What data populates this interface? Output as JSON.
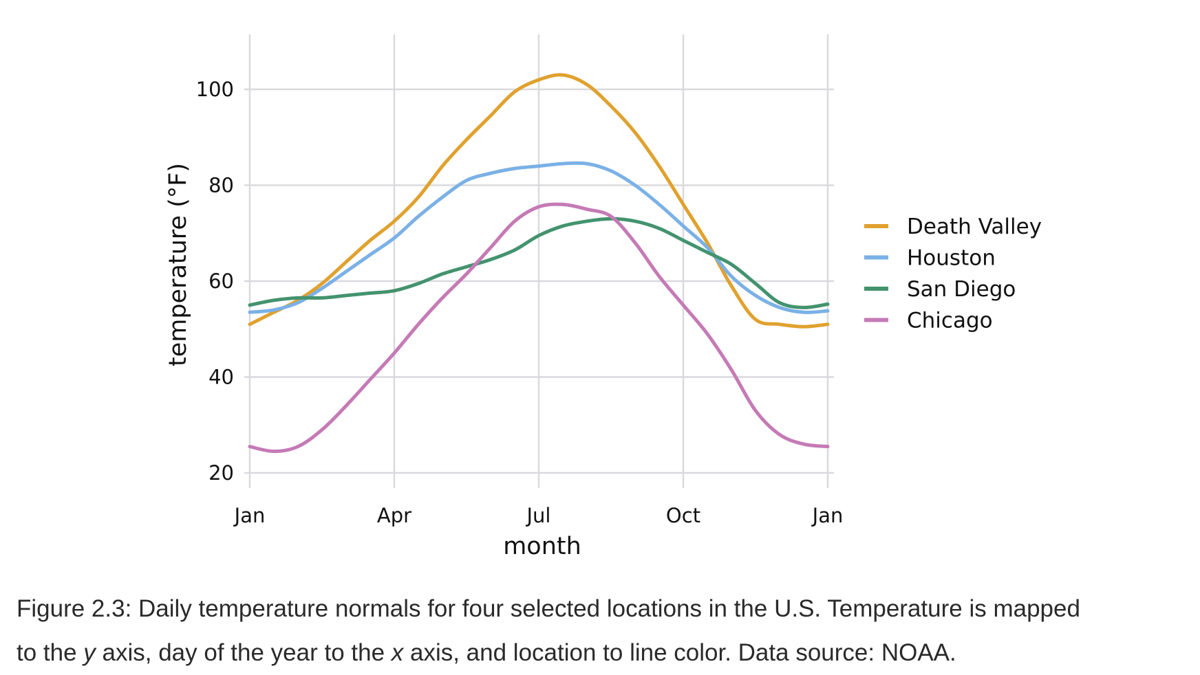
{
  "chart_data": {
    "type": "line",
    "xlabel": "month",
    "ylabel": "temperature (°F)",
    "x_axis": {
      "unit": "month",
      "ticks": [
        {
          "label": "Jan",
          "value": 1
        },
        {
          "label": "Apr",
          "value": 4
        },
        {
          "label": "Jul",
          "value": 7
        },
        {
          "label": "Oct",
          "value": 10
        },
        {
          "label": "Jan",
          "value": 13
        }
      ],
      "range": [
        1,
        13
      ]
    },
    "y_axis": {
      "ticks": [
        20,
        40,
        60,
        80,
        100
      ],
      "range": [
        15,
        111
      ]
    },
    "grid": true,
    "legend_placement": "right",
    "x": [
      1.0,
      1.5,
      2.0,
      2.5,
      3.0,
      3.5,
      4.0,
      4.5,
      5.0,
      5.5,
      6.0,
      6.5,
      7.0,
      7.5,
      8.0,
      8.5,
      9.0,
      9.5,
      10.0,
      10.5,
      11.0,
      11.5,
      12.0,
      12.5,
      13.0
    ],
    "series": [
      {
        "name": "Death Valley",
        "color": "#E0A12E",
        "values": [
          51,
          53.5,
          56,
          59.5,
          64,
          68.5,
          72.5,
          77.5,
          84,
          89.5,
          94.5,
          99.5,
          102,
          103,
          101,
          96.5,
          91,
          84,
          76,
          68,
          59,
          52,
          51,
          50.5,
          51
        ]
      },
      {
        "name": "Houston",
        "color": "#7AB1E6",
        "values": [
          53.5,
          54,
          55.5,
          58.5,
          62,
          65.5,
          69,
          73.5,
          77.5,
          81,
          82.5,
          83.5,
          84,
          84.5,
          84.5,
          83,
          80,
          76,
          71.5,
          67,
          61,
          57,
          54.5,
          53.5,
          53.8
        ]
      },
      {
        "name": "San Diego",
        "color": "#43936E",
        "values": [
          55,
          56,
          56.5,
          56.5,
          57,
          57.5,
          58,
          59.5,
          61.5,
          63,
          64.5,
          66.5,
          69.5,
          71.5,
          72.5,
          73,
          72.5,
          71,
          68.5,
          66,
          63.5,
          59.5,
          55.5,
          54.5,
          55.2
        ]
      },
      {
        "name": "Chicago",
        "color": "#C57AB6",
        "values": [
          25.5,
          24.5,
          25.5,
          29,
          34,
          39.5,
          45,
          51,
          56.5,
          61.5,
          67,
          72.5,
          75.5,
          76,
          75,
          73.5,
          68,
          61,
          55,
          49,
          41.5,
          33,
          28,
          26,
          25.5
        ]
      }
    ]
  },
  "caption": {
    "line1": "Figure 2.3: Daily temperature normals for four selected locations in the U.S. Temperature is mapped",
    "line2_a": "to the ",
    "line2_y": "y",
    "line2_b": " axis, day of the year to the ",
    "line2_x": "x",
    "line2_c": " axis, and location to line color. Data source: NOAA."
  },
  "colors": {
    "grid": "#DADADE",
    "text": "#111111",
    "caption_text": "#2a2a2a"
  }
}
